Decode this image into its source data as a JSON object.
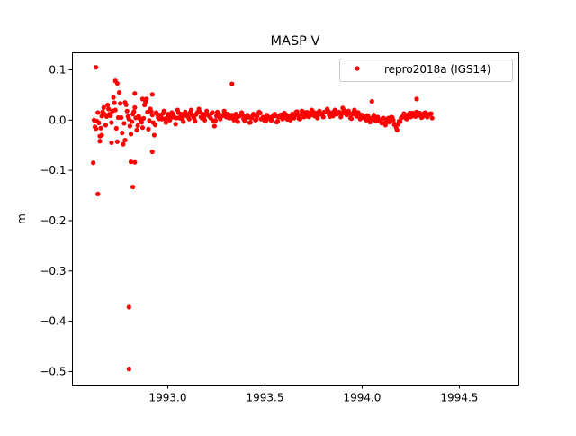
{
  "chart_data": {
    "type": "scatter",
    "title": "MASP V",
    "xlabel": "",
    "ylabel": "m",
    "xlim": [
      1992.509,
      1994.806
    ],
    "ylim": [
      -0.527,
      0.134
    ],
    "xticks": [
      1993.0,
      1993.5,
      1994.0,
      1994.5
    ],
    "xtick_labels": [
      "1993.0",
      "1993.5",
      "1994.0",
      "1994.5"
    ],
    "yticks": [
      0.1,
      0.0,
      -0.1,
      -0.2,
      -0.3,
      -0.4,
      -0.5
    ],
    "ytick_labels": [
      "0.1",
      "0.0",
      "−0.1",
      "−0.2",
      "−0.3",
      "−0.4",
      "−0.5"
    ],
    "grid": false,
    "legend_position": "top-right",
    "series": [
      {
        "name": "repro2018a (IGS14)",
        "color": "#ff0000",
        "x_start": 1992.62,
        "x_step": 0.01,
        "y": [
          0.0,
          -0.017,
          0.015,
          -0.032,
          0.008,
          0.025,
          -0.01,
          0.03,
          0.012,
          -0.005,
          0.045,
          0.02,
          -0.043,
          0.055,
          0.005,
          -0.048,
          0.035,
          0.018,
          0.002,
          -0.028,
          0.012,
          0.025,
          -0.02,
          0.008,
          0.0,
          -0.015,
          0.03,
          0.042,
          -0.018,
          0.022,
          0.01,
          -0.03,
          0.015,
          0.005,
          0.01,
          0.002,
          0.018,
          -0.005,
          0.012,
          0.0,
          0.015,
          0.008,
          -0.008,
          0.02,
          0.005,
          0.012,
          -0.003,
          0.016,
          0.01,
          0.002,
          0.02,
          0.008,
          -0.002,
          0.014,
          0.022,
          0.006,
          0.012,
          0.0,
          0.018,
          0.01,
          0.004,
          0.015,
          -0.012,
          0.008,
          0.014,
          0.002,
          0.01,
          0.018,
          0.006,
          0.012,
          0.004,
          0.01,
          0.0,
          0.012,
          -0.003,
          0.008,
          0.015,
          0.002,
          0.006,
          0.01,
          -0.005,
          0.004,
          0.012,
          0.0,
          0.008,
          0.016,
          0.002,
          0.006,
          -0.002,
          0.01,
          0.004,
          0.0,
          0.008,
          0.012,
          -0.004,
          0.006,
          0.01,
          0.002,
          0.014,
          0.005,
          0.008,
          0.0,
          0.012,
          0.004,
          0.016,
          0.01,
          0.002,
          0.018,
          0.006,
          0.012,
          0.015,
          0.008,
          0.02,
          0.01,
          0.014,
          0.004,
          0.018,
          0.012,
          0.006,
          0.016,
          0.022,
          0.01,
          0.014,
          0.008,
          0.02,
          0.012,
          0.016,
          0.006,
          0.024,
          0.014,
          0.01,
          0.018,
          0.004,
          0.012,
          0.02,
          0.008,
          0.015,
          0.002,
          0.01,
          0.006,
          0.0,
          0.008,
          -0.004,
          0.004,
          0.01,
          -0.002,
          0.006,
          0.0,
          -0.006,
          0.004,
          -0.01,
          0.002,
          -0.004,
          0.006,
          0.0,
          -0.008,
          -0.02,
          -0.002,
          0.004,
          0.008,
          0.01,
          0.002,
          0.012,
          0.006,
          0.014,
          0.008,
          0.016,
          0.01,
          0.012,
          0.006,
          0.014,
          0.008,
          0.01,
          0.012,
          0.004
        ]
      }
    ],
    "extra_points": [
      [
        1992.616,
        -0.085
      ],
      [
        1992.63,
        0.105
      ],
      [
        1992.64,
        -0.147
      ],
      [
        1992.8,
        -0.372
      ],
      [
        1992.8,
        -0.495
      ],
      [
        1992.81,
        -0.083
      ],
      [
        1992.82,
        -0.133
      ],
      [
        1992.83,
        -0.084
      ],
      [
        1992.92,
        -0.063
      ],
      [
        1992.73,
        0.078
      ],
      [
        1992.74,
        0.073
      ],
      [
        1992.83,
        0.053
      ],
      [
        1992.92,
        0.051
      ],
      [
        1993.33,
        0.072
      ],
      [
        1994.05,
        0.037
      ],
      [
        1994.28,
        0.042
      ],
      [
        1992.65,
        -0.042
      ],
      [
        1992.66,
        -0.03
      ],
      [
        1992.71,
        -0.045
      ],
      [
        1992.78,
        -0.04
      ],
      [
        1992.87,
        0.042
      ]
    ]
  }
}
